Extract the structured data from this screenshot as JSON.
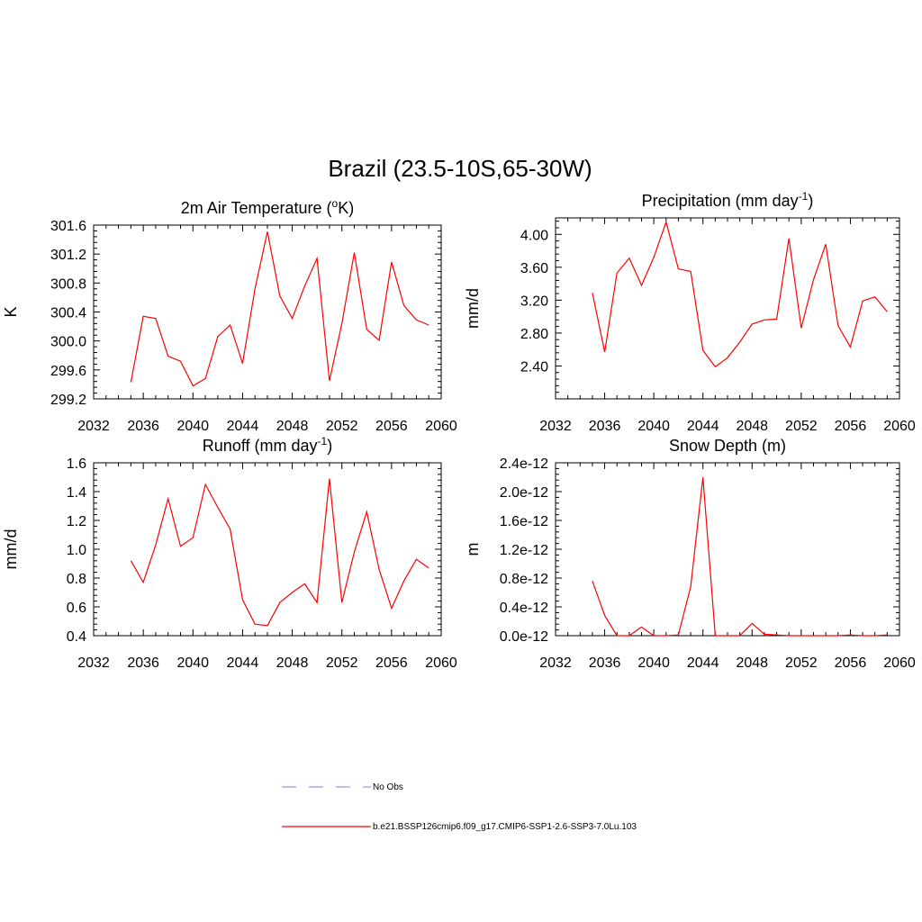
{
  "figure": {
    "title": "Brazil (23.5-10S,65-30W)"
  },
  "legend": {
    "items": [
      {
        "label": "No Obs",
        "color": "#9999dd",
        "style": "dashed"
      },
      {
        "label": "b.e21.BSSP126cmip6.f09_g17.CMIP6-SSP1-2.6-SSP3-7.0Lu.103",
        "color": "#ff0000",
        "style": "solid"
      }
    ]
  },
  "chart_data": [
    {
      "type": "line",
      "title": "2m Air Temperature (oK)",
      "title_parts": {
        "main": "2m Air Temperature (",
        "sup": "o",
        "tail": "K)"
      },
      "xlabel": "",
      "ylabel": "K",
      "xlim": [
        2032,
        2060
      ],
      "ylim": [
        299.2,
        301.6
      ],
      "xticks": [
        2032,
        2036,
        2040,
        2044,
        2048,
        2052,
        2056,
        2060
      ],
      "yticks": [
        299.2,
        299.6,
        300.0,
        300.4,
        300.8,
        301.2,
        301.6
      ],
      "ytick_labels": [
        "299.2",
        "299.6",
        "300.0",
        "300.4",
        "300.8",
        "301.2",
        "301.6"
      ],
      "series": [
        {
          "color": "#ff0000",
          "x": [
            2035,
            2036,
            2037,
            2038,
            2039,
            2040,
            2041,
            2042,
            2043,
            2044,
            2045,
            2046,
            2047,
            2048,
            2049,
            2050,
            2051,
            2052,
            2053,
            2054,
            2055,
            2056,
            2057,
            2058,
            2059
          ],
          "y": [
            299.43,
            300.34,
            300.31,
            299.79,
            299.72,
            299.38,
            299.48,
            300.06,
            300.22,
            299.69,
            300.72,
            301.51,
            300.62,
            300.31,
            300.76,
            301.14,
            299.45,
            300.24,
            301.22,
            300.16,
            300.01,
            301.09,
            300.49,
            300.29,
            300.22
          ]
        }
      ]
    },
    {
      "type": "line",
      "title": "Precipitation (mm day-1)",
      "title_parts": {
        "main": "Precipitation (mm day",
        "sup": "-1",
        "tail": ")"
      },
      "xlabel": "",
      "ylabel": "mm/d",
      "xlim": [
        2032,
        2060
      ],
      "ylim": [
        2.0,
        4.2
      ],
      "xticks": [
        2032,
        2036,
        2040,
        2044,
        2048,
        2052,
        2056,
        2060
      ],
      "yticks": [
        2.4,
        2.8,
        3.2,
        3.6,
        4.0
      ],
      "ytick_labels": [
        "2.40",
        "2.80",
        "3.20",
        "3.60",
        "4.00"
      ],
      "series": [
        {
          "color": "#ff0000",
          "x": [
            2035,
            2036,
            2037,
            2038,
            2039,
            2040,
            2041,
            2042,
            2043,
            2044,
            2045,
            2046,
            2047,
            2048,
            2049,
            2050,
            2051,
            2052,
            2053,
            2054,
            2055,
            2056,
            2057,
            2058,
            2059
          ],
          "y": [
            3.29,
            2.57,
            3.53,
            3.71,
            3.38,
            3.72,
            4.15,
            3.58,
            3.55,
            2.59,
            2.39,
            2.5,
            2.69,
            2.91,
            2.96,
            2.97,
            3.95,
            2.86,
            3.45,
            3.88,
            2.89,
            2.63,
            3.19,
            3.24,
            3.06
          ]
        }
      ]
    },
    {
      "type": "line",
      "title": "Runoff (mm day-1)",
      "title_parts": {
        "main": "Runoff (mm day",
        "sup": "-1",
        "tail": ")"
      },
      "xlabel": "",
      "ylabel": "mm/d",
      "xlim": [
        2032,
        2060
      ],
      "ylim": [
        0.4,
        1.6
      ],
      "xticks": [
        2032,
        2036,
        2040,
        2044,
        2048,
        2052,
        2056,
        2060
      ],
      "yticks": [
        0.4,
        0.6,
        0.8,
        1.0,
        1.2,
        1.4,
        1.6
      ],
      "ytick_labels": [
        "0.4",
        "0.6",
        "0.8",
        "1.0",
        "1.2",
        "1.4",
        "1.6"
      ],
      "series": [
        {
          "color": "#ff0000",
          "x": [
            2035,
            2036,
            2037,
            2038,
            2039,
            2040,
            2041,
            2042,
            2043,
            2044,
            2045,
            2046,
            2047,
            2048,
            2049,
            2050,
            2051,
            2052,
            2053,
            2054,
            2055,
            2056,
            2057,
            2058,
            2059
          ],
          "y": [
            0.92,
            0.77,
            1.03,
            1.35,
            1.02,
            1.08,
            1.45,
            1.29,
            1.14,
            0.65,
            0.48,
            0.47,
            0.63,
            0.7,
            0.76,
            0.63,
            1.49,
            0.63,
            0.98,
            1.26,
            0.86,
            0.59,
            0.78,
            0.93,
            0.87
          ]
        }
      ]
    },
    {
      "type": "line",
      "title": "Snow Depth (m)",
      "title_parts": {
        "main": "Snow Depth (m)",
        "sup": "",
        "tail": ""
      },
      "xlabel": "",
      "ylabel": "m",
      "xlim": [
        2032,
        2060
      ],
      "ylim": [
        0,
        2.4e-12
      ],
      "xticks": [
        2032,
        2036,
        2040,
        2044,
        2048,
        2052,
        2056,
        2060
      ],
      "yticks": [
        0,
        4e-13,
        8e-13,
        1.2e-12,
        1.6e-12,
        2e-12,
        2.4e-12
      ],
      "ytick_labels": [
        "0.0e-12",
        "0.4e-12",
        "0.8e-12",
        "1.2e-12",
        "1.6e-12",
        "2.0e-12",
        "2.4e-12"
      ],
      "series": [
        {
          "color": "#ff0000",
          "x": [
            2035,
            2036,
            2037,
            2038,
            2039,
            2040,
            2041,
            2042,
            2043,
            2044,
            2045,
            2046,
            2047,
            2048,
            2049,
            2050,
            2051,
            2052,
            2053,
            2054,
            2055,
            2056,
            2057,
            2058,
            2059
          ],
          "y": [
            7.6e-13,
            2.8e-13,
            0,
            0,
            1.2e-13,
            0,
            0,
            1e-14,
            6.8e-13,
            2.2e-12,
            0,
            0,
            0,
            1.7e-13,
            2e-14,
            1e-14,
            0,
            0,
            0,
            0,
            0,
            1e-14,
            0,
            0,
            1e-14
          ]
        }
      ]
    }
  ]
}
